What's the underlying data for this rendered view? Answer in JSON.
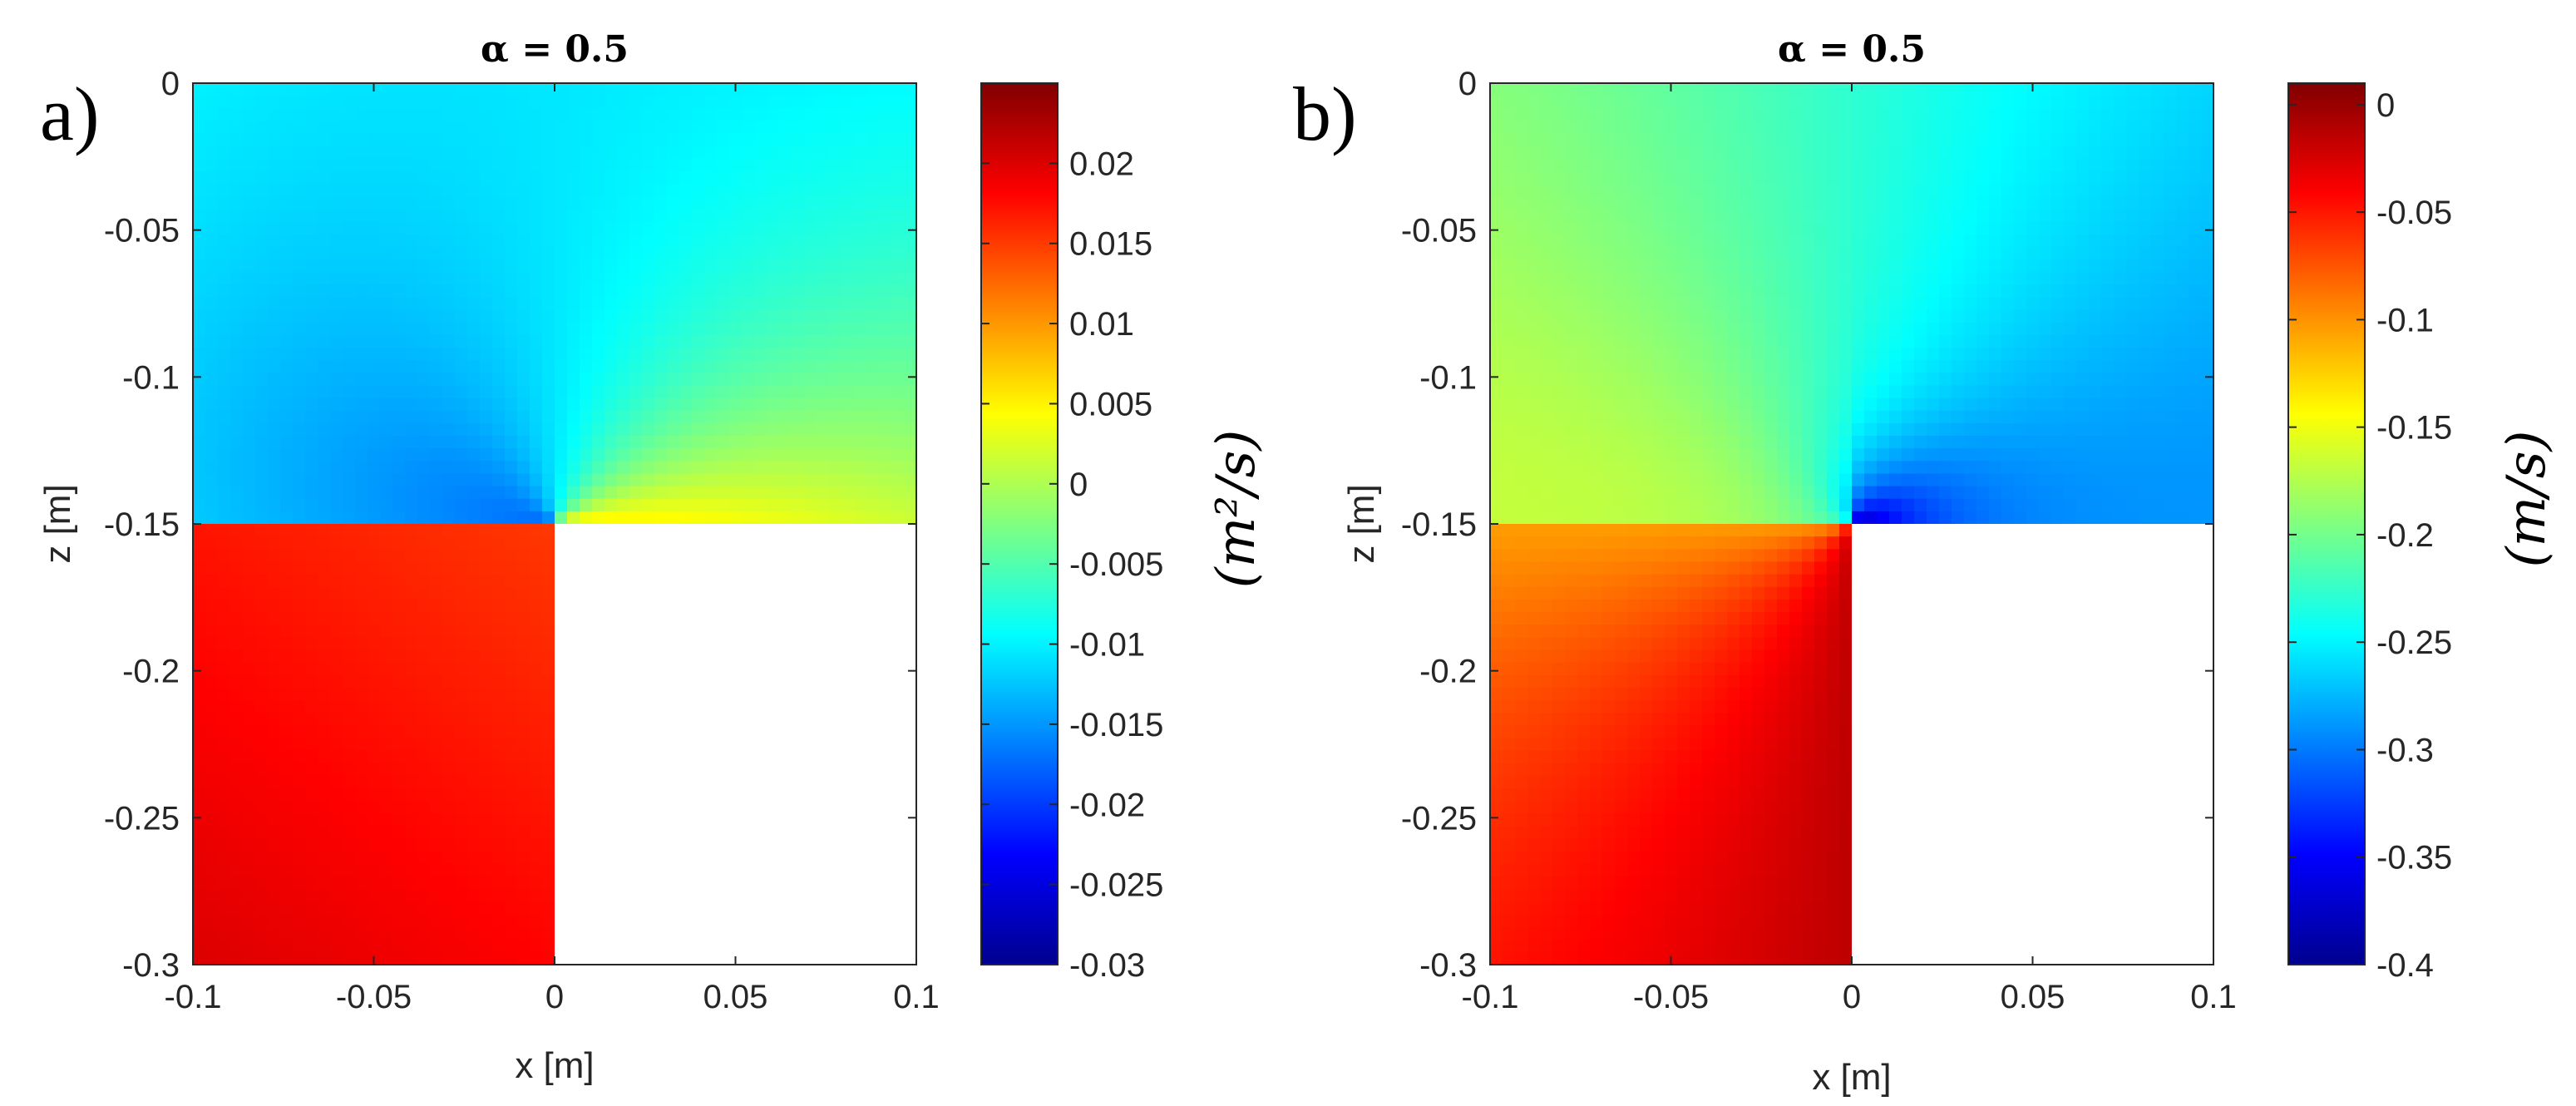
{
  "chart_data": [
    {
      "type": "heatmap",
      "panel_label": "a)",
      "title": "α = 0.5",
      "xlabel": "x [m]",
      "ylabel": "z [m]",
      "xlim": [
        -0.1,
        0.1
      ],
      "ylim": [
        -0.3,
        0
      ],
      "x_ticks": [
        "-0.1",
        "-0.05",
        "0",
        "0.05",
        "0.1"
      ],
      "x_tick_values": [
        -0.1,
        -0.05,
        0,
        0.05,
        0.1
      ],
      "y_ticks": [
        "0",
        "-0.05",
        "-0.1",
        "-0.15",
        "-0.2",
        "-0.25",
        "-0.3"
      ],
      "y_tick_values": [
        0,
        -0.05,
        -0.1,
        -0.15,
        -0.2,
        -0.25,
        -0.3
      ],
      "masked_region": {
        "x": [
          0,
          0.1
        ],
        "z": [
          -0.3,
          -0.15
        ]
      },
      "colorbar": {
        "label": "(m²/s)",
        "range": [
          -0.03,
          0.025
        ],
        "ticks": [
          "0.02",
          "0.015",
          "0.01",
          "0.005",
          "0",
          "-0.005",
          "-0.01",
          "-0.015",
          "-0.02",
          "-0.025",
          "-0.03"
        ],
        "tick_values": [
          0.02,
          0.015,
          0.01,
          0.005,
          0,
          -0.005,
          -0.01,
          -0.015,
          -0.02,
          -0.025,
          -0.03
        ]
      }
    },
    {
      "type": "heatmap",
      "panel_label": "b)",
      "title": "α = 0.5",
      "xlabel": "x [m]",
      "ylabel": "z [m]",
      "xlim": [
        -0.1,
        0.1
      ],
      "ylim": [
        -0.3,
        0
      ],
      "x_ticks": [
        "-0.1",
        "-0.05",
        "0",
        "0.05",
        "0.1"
      ],
      "x_tick_values": [
        -0.1,
        -0.05,
        0,
        0.05,
        0.1
      ],
      "y_ticks": [
        "0",
        "-0.05",
        "-0.1",
        "-0.15",
        "-0.2",
        "-0.25",
        "-0.3"
      ],
      "y_tick_values": [
        0,
        -0.05,
        -0.1,
        -0.15,
        -0.2,
        -0.25,
        -0.3
      ],
      "masked_region": {
        "x": [
          0,
          0.1
        ],
        "z": [
          -0.3,
          -0.15
        ]
      },
      "colorbar": {
        "label": "(m/s)",
        "range": [
          -0.4,
          0.01
        ],
        "ticks": [
          "0",
          "-0.05",
          "-0.1",
          "-0.15",
          "-0.2",
          "-0.25",
          "-0.3",
          "-0.35",
          "-0.4"
        ],
        "tick_values": [
          0,
          -0.05,
          -0.1,
          -0.15,
          -0.2,
          -0.25,
          -0.3,
          -0.35,
          -0.4
        ]
      }
    }
  ],
  "colors": {
    "jet": [
      "#00008f",
      "#0000ff",
      "#0080ff",
      "#00ffff",
      "#80ff80",
      "#ffff00",
      "#ff8000",
      "#ff0000",
      "#800000"
    ],
    "axis": "#262626",
    "mask": "#ffffff"
  }
}
